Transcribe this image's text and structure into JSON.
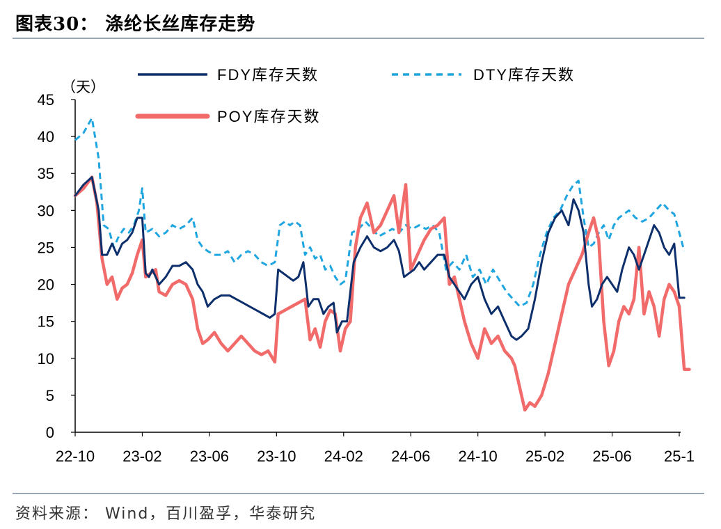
{
  "header": {
    "title": "图表30：  涤纶长丝库存走势"
  },
  "footer": {
    "source": "资料来源： Wind，百川盈孚，华泰研究"
  },
  "chart_data": {
    "type": "line",
    "ylabel": "（天）",
    "ylim": [
      0,
      45
    ],
    "yticks": [
      0,
      5,
      10,
      15,
      20,
      25,
      30,
      35,
      40,
      45
    ],
    "xlim": [
      0,
      36
    ],
    "xticks": [
      {
        "pos": 0,
        "label": "22-10"
      },
      {
        "pos": 4,
        "label": "23-02"
      },
      {
        "pos": 8,
        "label": "23-06"
      },
      {
        "pos": 12,
        "label": "23-10"
      },
      {
        "pos": 16,
        "label": "24-02"
      },
      {
        "pos": 20,
        "label": "24-06"
      },
      {
        "pos": 24,
        "label": "24-10"
      },
      {
        "pos": 28,
        "label": "25-02"
      },
      {
        "pos": 32,
        "label": "25-06"
      },
      {
        "pos": 36,
        "label": "25-1"
      }
    ],
    "legend": "top",
    "grid": false,
    "series": [
      {
        "name": "FDY库存天数",
        "color": "#0d2f6b",
        "style": "solid",
        "points": [
          [
            0,
            32
          ],
          [
            0.5,
            33.5
          ],
          [
            1,
            34.5
          ],
          [
            1.4,
            30
          ],
          [
            1.6,
            24
          ],
          [
            1.9,
            24
          ],
          [
            2.2,
            25.5
          ],
          [
            2.5,
            24
          ],
          [
            2.8,
            25.5
          ],
          [
            3.1,
            26
          ],
          [
            3.4,
            27
          ],
          [
            3.7,
            29
          ],
          [
            4,
            29
          ],
          [
            4.2,
            21.5
          ],
          [
            4.4,
            21
          ],
          [
            4.6,
            22
          ],
          [
            5,
            20
          ],
          [
            5.4,
            21
          ],
          [
            5.8,
            22.5
          ],
          [
            6.2,
            22.5
          ],
          [
            6.6,
            23
          ],
          [
            7,
            22
          ],
          [
            7.3,
            20
          ],
          [
            7.6,
            19
          ],
          [
            7.9,
            17
          ],
          [
            8.3,
            18
          ],
          [
            8.7,
            18.5
          ],
          [
            9.2,
            18.5
          ],
          [
            9.6,
            18
          ],
          [
            10,
            17.5
          ],
          [
            10.4,
            17
          ],
          [
            10.8,
            16.5
          ],
          [
            11.2,
            16
          ],
          [
            11.6,
            15.5
          ],
          [
            11.9,
            16
          ],
          [
            12.1,
            22
          ],
          [
            12.4,
            21.5
          ],
          [
            12.7,
            21
          ],
          [
            13,
            20.5
          ],
          [
            13.3,
            21
          ],
          [
            13.6,
            23
          ],
          [
            13.9,
            17
          ],
          [
            14.2,
            18
          ],
          [
            14.5,
            18
          ],
          [
            14.8,
            16
          ],
          [
            15.1,
            17
          ],
          [
            15.4,
            17.5
          ],
          [
            15.6,
            13.5
          ],
          [
            15.9,
            15
          ],
          [
            16.2,
            15
          ],
          [
            16.6,
            23
          ],
          [
            17,
            25
          ],
          [
            17.4,
            26.5
          ],
          [
            17.8,
            25
          ],
          [
            18.2,
            24.5
          ],
          [
            18.6,
            25
          ],
          [
            19,
            26
          ],
          [
            19.3,
            24.5
          ],
          [
            19.6,
            21
          ],
          [
            19.9,
            21.5
          ],
          [
            20.2,
            22
          ],
          [
            20.5,
            23
          ],
          [
            20.8,
            22
          ],
          [
            21.2,
            23
          ],
          [
            21.6,
            24
          ],
          [
            22,
            24
          ],
          [
            22.3,
            21
          ],
          [
            22.6,
            20
          ],
          [
            22.9,
            19
          ],
          [
            23.2,
            18
          ],
          [
            23.6,
            20
          ],
          [
            24,
            21
          ],
          [
            24.4,
            18
          ],
          [
            24.8,
            16
          ],
          [
            25.2,
            17
          ],
          [
            25.6,
            15
          ],
          [
            26,
            13
          ],
          [
            26.3,
            12.5
          ],
          [
            26.6,
            13
          ],
          [
            27,
            14
          ],
          [
            27.4,
            18
          ],
          [
            27.8,
            23
          ],
          [
            28.2,
            27
          ],
          [
            28.6,
            29
          ],
          [
            29,
            30
          ],
          [
            29.4,
            28
          ],
          [
            29.7,
            31.5
          ],
          [
            30,
            30
          ],
          [
            30.3,
            27
          ],
          [
            30.6,
            20
          ],
          [
            30.8,
            17
          ],
          [
            31.1,
            18
          ],
          [
            31.4,
            20
          ],
          [
            31.7,
            21
          ],
          [
            32,
            20
          ],
          [
            32.3,
            19
          ],
          [
            32.6,
            22
          ],
          [
            33,
            25
          ],
          [
            33.3,
            24
          ],
          [
            33.6,
            22
          ],
          [
            33.9,
            24
          ],
          [
            34.2,
            26
          ],
          [
            34.5,
            28
          ],
          [
            34.8,
            27
          ],
          [
            35.1,
            25
          ],
          [
            35.4,
            24
          ],
          [
            35.7,
            25.5
          ],
          [
            36,
            18.2
          ],
          [
            36.3,
            18.2
          ]
        ]
      },
      {
        "name": "DTY库存天数",
        "color": "#1fa6e0",
        "style": "dashed",
        "points": [
          [
            0,
            39.5
          ],
          [
            0.5,
            40.5
          ],
          [
            1,
            42.5
          ],
          [
            1.4,
            37
          ],
          [
            1.7,
            28
          ],
          [
            2,
            27.5
          ],
          [
            2.3,
            25
          ],
          [
            2.6,
            26.5
          ],
          [
            2.9,
            27.5
          ],
          [
            3.2,
            27
          ],
          [
            3.5,
            28
          ],
          [
            3.8,
            30
          ],
          [
            4,
            33
          ],
          [
            4.2,
            27
          ],
          [
            4.6,
            27.5
          ],
          [
            5,
            26.5
          ],
          [
            5.4,
            27
          ],
          [
            5.8,
            28
          ],
          [
            6.2,
            27.5
          ],
          [
            6.6,
            28
          ],
          [
            7,
            29
          ],
          [
            7.3,
            26
          ],
          [
            7.6,
            25
          ],
          [
            7.9,
            24.5
          ],
          [
            8.3,
            24
          ],
          [
            8.7,
            24
          ],
          [
            9.1,
            24.5
          ],
          [
            9.5,
            23
          ],
          [
            9.9,
            24
          ],
          [
            10.3,
            24.5
          ],
          [
            10.7,
            24
          ],
          [
            11.1,
            23
          ],
          [
            11.5,
            22.5
          ],
          [
            11.9,
            23
          ],
          [
            12.2,
            28
          ],
          [
            12.5,
            28.5
          ],
          [
            12.8,
            28
          ],
          [
            13.1,
            28.5
          ],
          [
            13.4,
            28
          ],
          [
            13.7,
            24
          ],
          [
            14,
            25
          ],
          [
            14.3,
            23.5
          ],
          [
            14.6,
            24
          ],
          [
            14.9,
            22
          ],
          [
            15.2,
            22.5
          ],
          [
            15.5,
            21
          ],
          [
            15.8,
            20
          ],
          [
            16.1,
            20.5
          ],
          [
            16.5,
            27
          ],
          [
            16.9,
            27.5
          ],
          [
            17.3,
            28.5
          ],
          [
            17.7,
            27.5
          ],
          [
            18.1,
            26.5
          ],
          [
            18.5,
            27
          ],
          [
            18.9,
            27.5
          ],
          [
            19.3,
            27
          ],
          [
            19.7,
            28
          ],
          [
            20.1,
            27.5
          ],
          [
            20.5,
            28
          ],
          [
            20.9,
            27.5
          ],
          [
            21.3,
            28
          ],
          [
            21.7,
            27
          ],
          [
            22.1,
            22
          ],
          [
            22.5,
            23
          ],
          [
            22.9,
            22
          ],
          [
            23.3,
            24
          ],
          [
            23.7,
            21
          ],
          [
            24.1,
            22
          ],
          [
            24.5,
            20
          ],
          [
            24.9,
            22
          ],
          [
            25.3,
            20.5
          ],
          [
            25.7,
            19
          ],
          [
            26.1,
            18
          ],
          [
            26.5,
            17
          ],
          [
            26.9,
            17.5
          ],
          [
            27.3,
            20
          ],
          [
            27.7,
            24
          ],
          [
            28.1,
            27
          ],
          [
            28.5,
            29
          ],
          [
            28.9,
            30
          ],
          [
            29.3,
            32
          ],
          [
            29.7,
            33.5
          ],
          [
            30,
            34
          ],
          [
            30.3,
            29
          ],
          [
            30.6,
            25
          ],
          [
            30.9,
            25.5
          ],
          [
            31.2,
            27
          ],
          [
            31.5,
            28
          ],
          [
            31.8,
            26
          ],
          [
            32.1,
            28
          ],
          [
            32.4,
            29
          ],
          [
            32.7,
            29.5
          ],
          [
            33,
            30
          ],
          [
            33.4,
            29
          ],
          [
            33.8,
            28.5
          ],
          [
            34.2,
            29
          ],
          [
            34.6,
            30
          ],
          [
            35,
            31
          ],
          [
            35.4,
            30
          ],
          [
            35.7,
            29.5
          ],
          [
            36,
            27
          ],
          [
            36.3,
            24.5
          ]
        ]
      },
      {
        "name": "POY库存天数",
        "color": "#f26b6b",
        "style": "solid",
        "points": [
          [
            0,
            32
          ],
          [
            0.5,
            33
          ],
          [
            1,
            34.5
          ],
          [
            1.3,
            31
          ],
          [
            1.6,
            23.5
          ],
          [
            1.9,
            20
          ],
          [
            2.2,
            21
          ],
          [
            2.5,
            18
          ],
          [
            2.8,
            19.5
          ],
          [
            3.1,
            20
          ],
          [
            3.4,
            21.5
          ],
          [
            3.7,
            24
          ],
          [
            4,
            26
          ],
          [
            4.2,
            21
          ],
          [
            4.5,
            21.5
          ],
          [
            4.8,
            22
          ],
          [
            5,
            19
          ],
          [
            5.4,
            18.5
          ],
          [
            5.8,
            20
          ],
          [
            6.2,
            20.5
          ],
          [
            6.6,
            20
          ],
          [
            7,
            18
          ],
          [
            7.3,
            14
          ],
          [
            7.6,
            12
          ],
          [
            7.9,
            12.5
          ],
          [
            8.3,
            13.5
          ],
          [
            8.7,
            12
          ],
          [
            9.1,
            11
          ],
          [
            9.5,
            12
          ],
          [
            9.9,
            13
          ],
          [
            10.3,
            12
          ],
          [
            10.7,
            11
          ],
          [
            11.1,
            10.5
          ],
          [
            11.5,
            11
          ],
          [
            11.9,
            9.5
          ],
          [
            12.1,
            16
          ],
          [
            12.5,
            16.5
          ],
          [
            12.9,
            17
          ],
          [
            13.3,
            17.5
          ],
          [
            13.7,
            18
          ],
          [
            14,
            12.5
          ],
          [
            14.3,
            14
          ],
          [
            14.6,
            11.5
          ],
          [
            14.9,
            15
          ],
          [
            15.2,
            16.5
          ],
          [
            15.5,
            16
          ],
          [
            15.8,
            11
          ],
          [
            16.1,
            14
          ],
          [
            16.4,
            15
          ],
          [
            16.7,
            25
          ],
          [
            17,
            29
          ],
          [
            17.4,
            31
          ],
          [
            17.8,
            27
          ],
          [
            18.2,
            28
          ],
          [
            18.6,
            30
          ],
          [
            19,
            32
          ],
          [
            19.3,
            27
          ],
          [
            19.7,
            33.5
          ],
          [
            20,
            22
          ],
          [
            20.4,
            24
          ],
          [
            20.8,
            26
          ],
          [
            21.2,
            27.5
          ],
          [
            21.6,
            28
          ],
          [
            22,
            29
          ],
          [
            22.3,
            20
          ],
          [
            22.6,
            21
          ],
          [
            22.9,
            18
          ],
          [
            23.2,
            15
          ],
          [
            23.6,
            12
          ],
          [
            24,
            10
          ],
          [
            24.4,
            14
          ],
          [
            24.8,
            12
          ],
          [
            25.2,
            13
          ],
          [
            25.6,
            11
          ],
          [
            26,
            10
          ],
          [
            26.2,
            9
          ],
          [
            26.5,
            6
          ],
          [
            26.8,
            3
          ],
          [
            27.1,
            4
          ],
          [
            27.4,
            3.5
          ],
          [
            27.8,
            5
          ],
          [
            28.2,
            8
          ],
          [
            28.6,
            12
          ],
          [
            29,
            16
          ],
          [
            29.4,
            20
          ],
          [
            29.8,
            22
          ],
          [
            30.2,
            24
          ],
          [
            30.6,
            27
          ],
          [
            30.9,
            29
          ],
          [
            31.2,
            26
          ],
          [
            31.5,
            15
          ],
          [
            31.8,
            9
          ],
          [
            32.1,
            11
          ],
          [
            32.4,
            15
          ],
          [
            32.7,
            17
          ],
          [
            33,
            16
          ],
          [
            33.3,
            18
          ],
          [
            33.6,
            25
          ],
          [
            33.9,
            16
          ],
          [
            34.2,
            19
          ],
          [
            34.5,
            17
          ],
          [
            34.8,
            13
          ],
          [
            35.1,
            18
          ],
          [
            35.4,
            20
          ],
          [
            35.7,
            19
          ],
          [
            36,
            17
          ],
          [
            36.3,
            8.5
          ],
          [
            36.6,
            8.5
          ]
        ]
      }
    ]
  }
}
